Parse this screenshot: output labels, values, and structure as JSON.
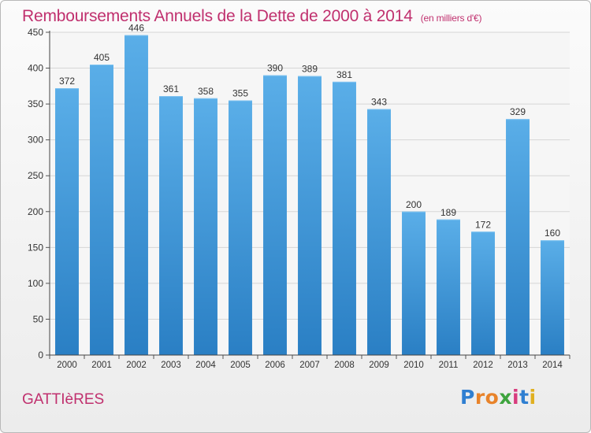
{
  "title": "Remboursements Annuels de la Dette de 2000 à 2014",
  "subtitle": "(en milliers d'€)",
  "commune": "GATTIèRES",
  "logo": {
    "letters": [
      "P",
      "r",
      "o",
      "x",
      "i",
      "t",
      "i"
    ],
    "colors": [
      "#2f7fd1",
      "#e8832a",
      "#e8832a",
      "#3ea43e",
      "#d83c7d",
      "#2f7fd1",
      "#e0b020"
    ]
  },
  "colors": {
    "bar_top": "#5aaee8",
    "bar_bottom": "#2a7fc4",
    "accent": "#c0306e"
  },
  "chart_data": {
    "type": "bar",
    "categories": [
      "2000",
      "2001",
      "2002",
      "2003",
      "2004",
      "2005",
      "2006",
      "2007",
      "2008",
      "2009",
      "2010",
      "2011",
      "2012",
      "2013",
      "2014"
    ],
    "values": [
      372,
      405,
      446,
      361,
      358,
      355,
      390,
      389,
      381,
      343,
      200,
      189,
      172,
      329,
      160
    ],
    "yticks": [
      0,
      50,
      100,
      150,
      200,
      250,
      300,
      350,
      400,
      450
    ],
    "ylim": [
      0,
      450
    ],
    "grid": true
  }
}
